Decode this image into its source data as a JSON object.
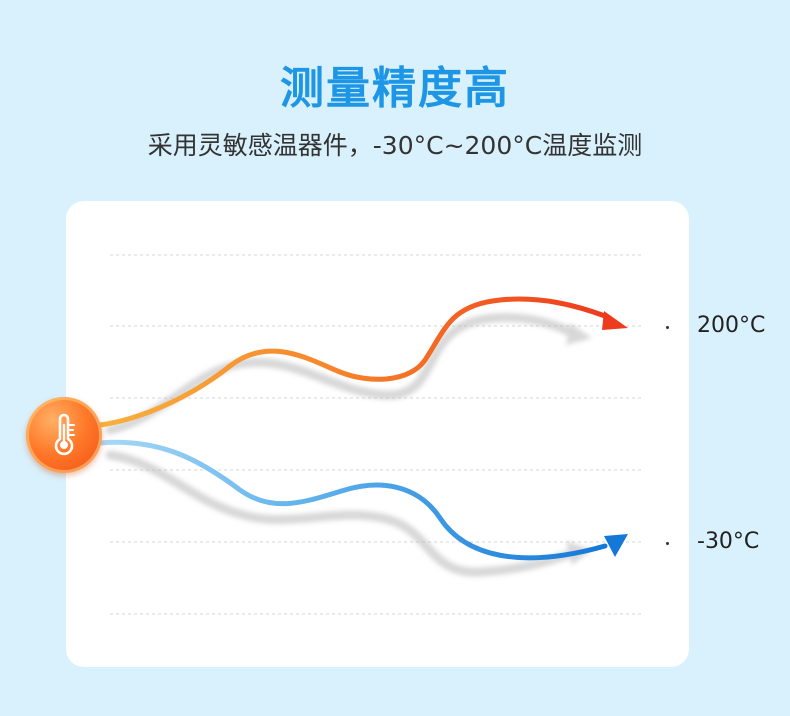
{
  "header": {
    "title": "测量精度高",
    "subtitle": "采用灵敏感温器件，-30°C~200°C温度监测"
  },
  "chart": {
    "high_label": "200°C",
    "low_label": "-30°C"
  },
  "colors": {
    "title": "#1e96e6",
    "background": "#d9f1fc",
    "hot_start": "#f7a23a",
    "hot_end": "#ee3b1d",
    "cold_start": "#9bd0f5",
    "cold_end": "#1478d8"
  },
  "icons": {
    "badge": "thermometer-icon"
  }
}
